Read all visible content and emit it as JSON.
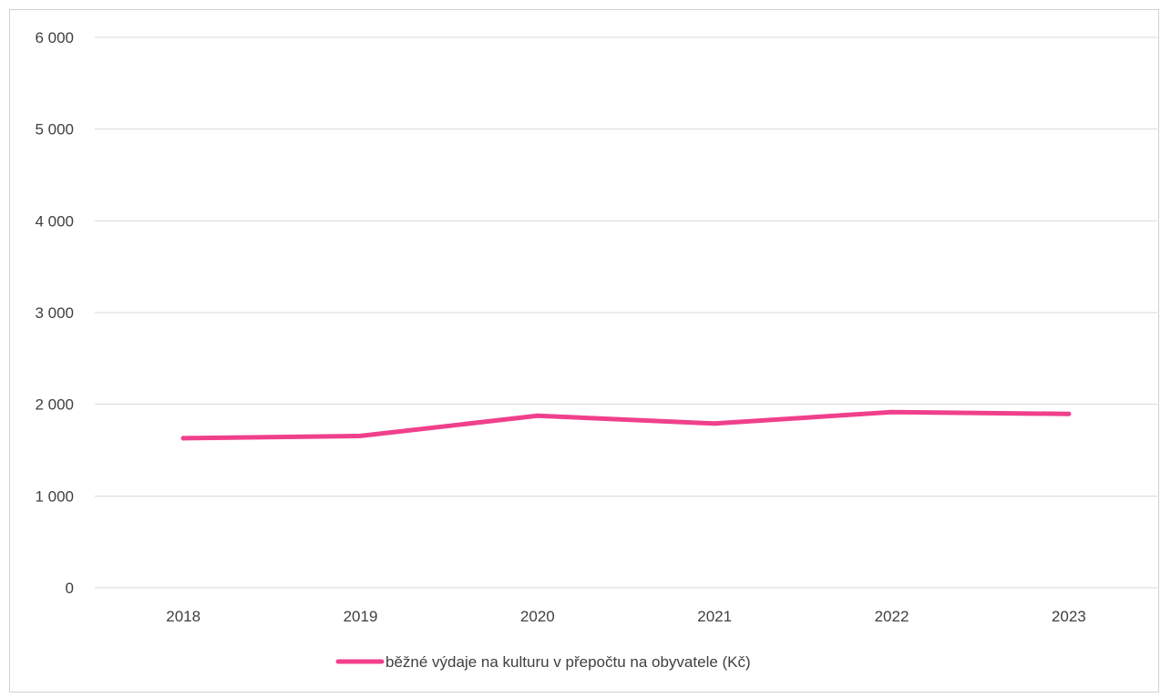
{
  "chart_data": {
    "type": "line",
    "categories": [
      "2018",
      "2019",
      "2020",
      "2021",
      "2022",
      "2023"
    ],
    "series": [
      {
        "name": "běžné výdaje na kulturu v přepočtu na obyvatele (Kč)",
        "values": [
          1630,
          1655,
          1875,
          1790,
          1915,
          1895
        ]
      }
    ],
    "y_ticks": [
      0,
      1000,
      2000,
      3000,
      4000,
      5000,
      6000
    ],
    "y_tick_labels": [
      "0",
      "1 000",
      "2 000",
      "3 000",
      "4 000",
      "5 000",
      "6 000"
    ],
    "ylim": [
      0,
      6000
    ],
    "grid": true,
    "legend_position": "bottom",
    "colors": {
      "series": "#f0408c",
      "grid": "#d9d9d9",
      "text": "#404040"
    }
  }
}
